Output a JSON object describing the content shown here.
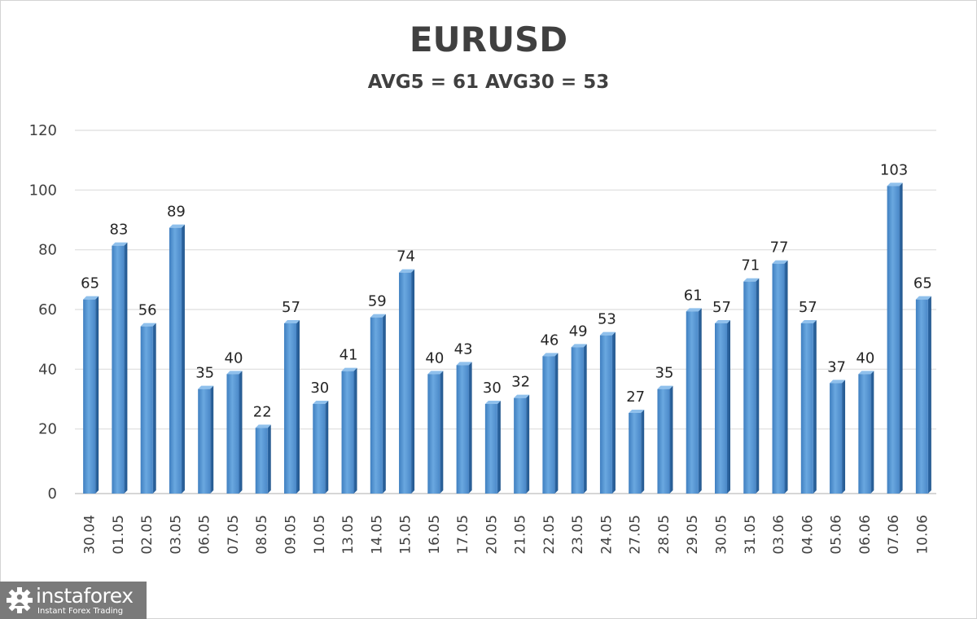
{
  "chart_data": {
    "type": "bar",
    "title": "EURUSD",
    "subtitle": "AVG5 = 61 AVG30 = 53",
    "categories": [
      "30.04",
      "01.05",
      "02.05",
      "03.05",
      "06.05",
      "07.05",
      "08.05",
      "09.05",
      "10.05",
      "13.05",
      "14.05",
      "15.05",
      "16.05",
      "17.05",
      "20.05",
      "21.05",
      "22.05",
      "23.05",
      "24.05",
      "27.05",
      "28.05",
      "29.05",
      "30.05",
      "31.05",
      "03.06",
      "04.06",
      "05.06",
      "06.06",
      "07.06",
      "10.06"
    ],
    "values": [
      65,
      83,
      56,
      89,
      35,
      40,
      22,
      57,
      30,
      41,
      59,
      74,
      40,
      43,
      30,
      32,
      46,
      49,
      53,
      27,
      35,
      61,
      57,
      71,
      77,
      57,
      37,
      40,
      103,
      65
    ],
    "ylim": [
      0,
      120
    ],
    "yticks": [
      0,
      20,
      40,
      60,
      80,
      100,
      120
    ],
    "grid": true,
    "legend": "none",
    "data_labels": true,
    "bar_color": "#5b9bd5",
    "xlabel": "",
    "ylabel": ""
  },
  "watermark": {
    "name": "instaforex",
    "tagline": "Instant Forex Trading"
  }
}
